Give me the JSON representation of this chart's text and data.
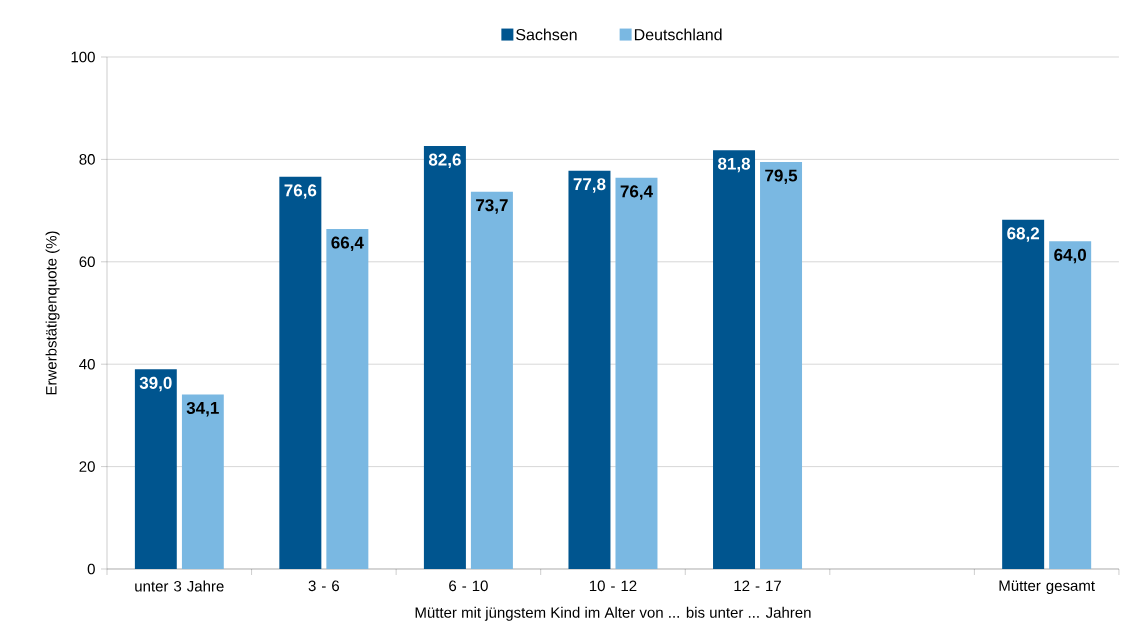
{
  "chart_data": {
    "type": "bar",
    "categories": [
      "unter 3 Jahre",
      "3 - 6",
      "6 - 10",
      "10 - 12",
      "12 - 17",
      null,
      "Mütter gesamt"
    ],
    "series": [
      {
        "name": "Sachsen",
        "color": "#00558f",
        "values": [
          39.0,
          76.6,
          82.6,
          77.8,
          81.8,
          null,
          68.2
        ],
        "value_labels": [
          "39,0",
          "76,6",
          "82,6",
          "77,8",
          "81,8",
          null,
          "68,2"
        ]
      },
      {
        "name": "Deutschland",
        "color": "#7ab8e2",
        "values": [
          34.1,
          66.4,
          73.7,
          76.4,
          79.5,
          null,
          64.0
        ],
        "value_labels": [
          "34,1",
          "66,4",
          "73,7",
          "76,4",
          "79,5",
          null,
          "64,0"
        ]
      }
    ],
    "xlabel": "Mütter mit jüngstem Kind  im Alter von ... bis unter ... Jahren",
    "ylabel": "Erwerbstätigenquote (%)",
    "ylim": [
      0,
      100
    ],
    "yticks": [
      0,
      20,
      40,
      60,
      80,
      100
    ],
    "grid": "y",
    "legend": "top"
  }
}
